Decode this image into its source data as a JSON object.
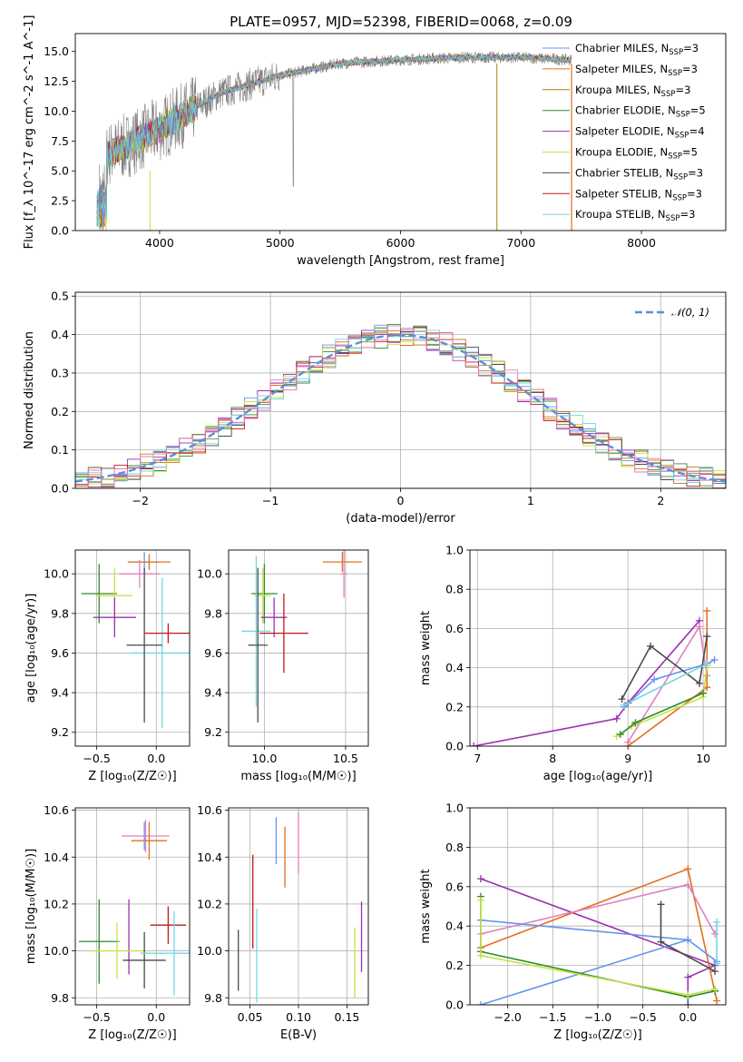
{
  "title": "PLATE=0957, MJD=52398, FIBERID=0068, z=0.09",
  "colors": {
    "chabrier_miles": "#6495ed",
    "salpeter_miles": "#e07020",
    "kroupa_miles": "#b07a1a",
    "chabrier_elodie": "#2e8b2e",
    "salpeter_elodie": "#9b30b0",
    "kroupa_elodie": "#c8e048",
    "chabrier_stelib": "#4a4a4a",
    "salpeter_stelib": "#c01818",
    "kroupa_stelib": "#70d8e0",
    "data": "#808080",
    "pink": "#e080c0"
  },
  "legend": [
    {
      "name": "Chabrier MILES",
      "nssp": "3"
    },
    {
      "name": "Salpeter MILES",
      "nssp": "3"
    },
    {
      "name": "Kroupa MILES",
      "nssp": "3"
    },
    {
      "name": "Chabrier ELODIE",
      "nssp": "5"
    },
    {
      "name": "Salpeter ELODIE",
      "nssp": "4"
    },
    {
      "name": "Kroupa ELODIE",
      "nssp": "5"
    },
    {
      "name": "Chabrier STELIB",
      "nssp": "3"
    },
    {
      "name": "Salpeter STELIB",
      "nssp": "3"
    },
    {
      "name": "Kroupa STELIB",
      "nssp": "3"
    }
  ],
  "chart_data": [
    {
      "id": "spectrum",
      "type": "line",
      "xlabel": "wavelength [Angstrom, rest frame]",
      "ylabel": "Flux [f_λ 10^-17 erg cm^-2 s^-1 A^-1]",
      "xlim": [
        3300,
        8700
      ],
      "ylim": [
        0,
        16.5
      ],
      "xticks": [
        4000,
        5000,
        6000,
        7000,
        8000
      ],
      "yticks": [
        0,
        2.5,
        5,
        7.5,
        10,
        12.5,
        15
      ],
      "series": [
        {
          "values_envelope": [
            [
              3500,
              6.0
            ],
            [
              3700,
              7.0
            ],
            [
              4000,
              8.5
            ],
            [
              4500,
              11.5
            ],
            [
              5000,
              13.0
            ],
            [
              5500,
              14.0
            ],
            [
              6000,
              14.3
            ],
            [
              6500,
              14.5
            ],
            [
              7000,
              14.5
            ],
            [
              7400,
              14.3
            ]
          ]
        }
      ]
    },
    {
      "id": "residuals",
      "type": "line",
      "xlabel": "(data-model)/error",
      "ylabel": "Normed distribution",
      "xlim": [
        -2.5,
        2.5
      ],
      "ylim": [
        0,
        0.51
      ],
      "xticks": [
        -2,
        -1,
        0,
        1,
        2
      ],
      "yticks": [
        0,
        0.1,
        0.2,
        0.3,
        0.4,
        0.5
      ],
      "legend": "N(0,1)",
      "legend_position": "top-right",
      "series": [
        {
          "name": "N(0,1)",
          "mu": 0,
          "sigma": 1
        }
      ]
    },
    {
      "id": "age_vs_Z",
      "type": "scatter",
      "xlabel": "Z [log10(Z/Z☉)]",
      "ylabel": "age  [log10(age/yr)]",
      "xlim": [
        -0.68,
        0.28
      ],
      "ylim": [
        9.13,
        10.12
      ],
      "xticks": [
        -0.5,
        0.0
      ],
      "yticks": [
        9.2,
        9.4,
        9.6,
        9.8,
        10.0
      ],
      "points": [
        {
          "c": "chabrier_miles",
          "x": -0.1,
          "xerr": 0.12,
          "y": 10.06,
          "yerr": 0.05
        },
        {
          "c": "salpeter_miles",
          "x": -0.06,
          "xerr": 0.18,
          "y": 10.06,
          "yerr": 0.04
        },
        {
          "c": "pink",
          "x": -0.14,
          "xerr": 0.17,
          "y": 10.0,
          "yerr": 0.07
        },
        {
          "c": "chabrier_elodie",
          "x": -0.48,
          "xerr": 0.15,
          "y": 9.9,
          "yerr": 0.15
        },
        {
          "c": "kroupa_elodie",
          "x": -0.35,
          "xerr": 0.15,
          "y": 9.89,
          "yerr": 0.14
        },
        {
          "c": "salpeter_elodie",
          "x": -0.35,
          "xerr": 0.18,
          "y": 9.78,
          "yerr": 0.1
        },
        {
          "c": "kroupa_stelib",
          "x": 0.05,
          "xerr": 0.27,
          "y": 9.6,
          "yerr": 0.38
        },
        {
          "c": "chabrier_stelib",
          "x": -0.1,
          "xerr": 0.15,
          "y": 9.64,
          "yerr": 0.39
        },
        {
          "c": "salpeter_stelib",
          "x": 0.1,
          "xerr": 0.2,
          "y": 9.7,
          "yerr": 0.05
        }
      ]
    },
    {
      "id": "age_vs_mass",
      "type": "scatter",
      "xlabel": "mass [log10(M/M☉)]",
      "ylabel": "",
      "xlim": [
        9.78,
        10.64
      ],
      "ylim": [
        9.13,
        10.12
      ],
      "xticks": [
        10.0,
        10.5
      ],
      "yticks": [
        9.2,
        9.4,
        9.6,
        9.8,
        10.0
      ],
      "points": [
        {
          "c": "salpeter_miles",
          "x": 10.48,
          "xerr": 0.12,
          "y": 10.06,
          "yerr": 0.05
        },
        {
          "c": "pink",
          "x": 10.49,
          "xerr": 0.02,
          "y": 10.0,
          "yerr": 0.12
        },
        {
          "c": "chabrier_elodie",
          "x": 10.0,
          "xerr": 0.08,
          "y": 9.9,
          "yerr": 0.15
        },
        {
          "c": "kroupa_elodie",
          "x": 9.99,
          "xerr": 0.05,
          "y": 9.89,
          "yerr": 0.14
        },
        {
          "c": "salpeter_elodie",
          "x": 10.06,
          "xerr": 0.08,
          "y": 9.78,
          "yerr": 0.1
        },
        {
          "c": "kroupa_stelib",
          "x": 9.95,
          "xerr": 0.09,
          "y": 9.71,
          "yerr": 0.38
        },
        {
          "c": "chabrier_stelib",
          "x": 9.96,
          "xerr": 0.06,
          "y": 9.64,
          "yerr": 0.39
        },
        {
          "c": "salpeter_stelib",
          "x": 10.12,
          "xerr": 0.15,
          "y": 9.7,
          "yerr": 0.2
        }
      ]
    },
    {
      "id": "weight_vs_age",
      "type": "line",
      "xlabel": "age  [log10(age/yr)]",
      "ylabel": "mass weight",
      "xlim": [
        6.9,
        10.3
      ],
      "ylim": [
        0,
        1.0
      ],
      "xticks": [
        7,
        8,
        9,
        10
      ],
      "yticks": [
        0.0,
        0.2,
        0.4,
        0.6,
        0.8,
        1.0
      ],
      "series": [
        {
          "c": "salpeter_elodie",
          "x": [
            6.95,
            8.85,
            9.0,
            9.95
          ],
          "y": [
            0.0,
            0.14,
            0.22,
            0.64
          ]
        },
        {
          "c": "pink",
          "x": [
            9.0,
            9.95,
            10.05
          ],
          "y": [
            0.02,
            0.61,
            0.36
          ]
        },
        {
          "c": "salpeter_miles",
          "x": [
            9.0,
            10.05,
            10.05
          ],
          "y": [
            0.0,
            0.3,
            0.69
          ]
        },
        {
          "c": "chabrier_miles",
          "x": [
            8.95,
            9.35,
            10.05,
            10.15
          ],
          "y": [
            0.2,
            0.34,
            0.42,
            0.44
          ]
        },
        {
          "c": "chabrier_stelib",
          "x": [
            8.92,
            9.3,
            9.95,
            10.05
          ],
          "y": [
            0.24,
            0.51,
            0.32,
            0.56
          ]
        },
        {
          "c": "kroupa_elodie",
          "x": [
            8.85,
            9.05,
            10.0,
            10.05
          ],
          "y": [
            0.05,
            0.1,
            0.25,
            0.41
          ]
        },
        {
          "c": "chabrier_elodie",
          "x": [
            8.9,
            9.1,
            10.0
          ],
          "y": [
            0.06,
            0.12,
            0.27
          ]
        },
        {
          "c": "kroupa_stelib",
          "x": [
            8.95,
            10.05
          ],
          "y": [
            0.21,
            0.42
          ]
        }
      ]
    },
    {
      "id": "mass_vs_Z",
      "type": "scatter",
      "xlabel": "Z [log10(Z/Z☉)]",
      "ylabel": "mass [log10(M/M☉)]",
      "xlim": [
        -0.68,
        0.28
      ],
      "ylim": [
        9.77,
        10.61
      ],
      "xticks": [
        -0.5,
        0.0
      ],
      "yticks": [
        9.8,
        10.0,
        10.2,
        10.4,
        10.6
      ],
      "points": [
        {
          "c": "pink",
          "x": -0.09,
          "xerr": 0.2,
          "y": 10.49,
          "yerr": 0.07
        },
        {
          "c": "salpeter_miles",
          "x": -0.06,
          "xerr": 0.15,
          "y": 10.47,
          "yerr": 0.08
        },
        {
          "c": "chabrier_miles",
          "x": -0.1,
          "xerr": 0.0,
          "y": 10.49,
          "yerr": 0.06
        },
        {
          "c": "salpeter_stelib",
          "x": 0.1,
          "xerr": 0.15,
          "y": 10.11,
          "yerr": 0.08
        },
        {
          "c": "salpeter_elodie",
          "x": -0.23,
          "xerr": 0.0,
          "y": 10.06,
          "yerr": 0.16
        },
        {
          "c": "chabrier_elodie",
          "x": -0.48,
          "xerr": 0.17,
          "y": 10.04,
          "yerr": 0.18
        },
        {
          "c": "kroupa_elodie",
          "x": -0.33,
          "xerr": 0.25,
          "y": 10.0,
          "yerr": 0.12
        },
        {
          "c": "chabrier_stelib",
          "x": -0.1,
          "xerr": 0.18,
          "y": 9.96,
          "yerr": 0.12
        },
        {
          "c": "kroupa_stelib",
          "x": 0.15,
          "xerr": 0.28,
          "y": 9.99,
          "yerr": 0.18
        }
      ]
    },
    {
      "id": "mass_vs_EBV",
      "type": "scatter",
      "xlabel": "E(B-V)",
      "ylabel": "",
      "xlim": [
        0.028,
        0.172
      ],
      "ylim": [
        9.77,
        10.61
      ],
      "xticks": [
        0.05,
        0.1,
        0.15
      ],
      "yticks": [
        9.8,
        10.0,
        10.2,
        10.4,
        10.6
      ],
      "points": [
        {
          "c": "chabrier_miles",
          "x": 0.077,
          "y": 10.47,
          "yerr": 0.1
        },
        {
          "c": "salpeter_miles",
          "x": 0.086,
          "y": 10.4,
          "yerr": 0.13
        },
        {
          "c": "pink",
          "x": 0.1,
          "y": 10.46,
          "yerr": 0.13
        },
        {
          "c": "salpeter_stelib",
          "x": 0.053,
          "y": 10.21,
          "yerr": 0.2
        },
        {
          "c": "chabrier_stelib",
          "x": 0.038,
          "y": 9.96,
          "yerr": 0.13
        },
        {
          "c": "kroupa_stelib",
          "x": 0.057,
          "y": 9.98,
          "yerr": 0.2
        },
        {
          "c": "salpeter_elodie",
          "x": 0.165,
          "y": 10.06,
          "yerr": 0.15
        },
        {
          "c": "kroupa_elodie",
          "x": 0.158,
          "y": 9.95,
          "yerr": 0.15
        }
      ]
    },
    {
      "id": "weight_vs_Z",
      "type": "line",
      "xlabel": "Z [log10(Z/Z☉)]",
      "ylabel": "mass weight",
      "xlim": [
        -2.42,
        0.42
      ],
      "ylim": [
        0,
        1.0
      ],
      "xticks": [
        -2.0,
        -1.5,
        -1.0,
        -0.5,
        0.0
      ],
      "yticks": [
        0.0,
        0.2,
        0.4,
        0.6,
        0.8,
        1.0
      ],
      "series": [
        {
          "c": "salpeter_elodie",
          "x": [
            -2.3,
            0.3,
            0.0,
            0.0
          ],
          "y": [
            0.64,
            0.2,
            0.14,
            0.0
          ]
        },
        {
          "c": "salpeter_miles",
          "x": [
            -2.3,
            0.0,
            0.32
          ],
          "y": [
            0.29,
            0.69,
            0.02
          ]
        },
        {
          "c": "pink",
          "x": [
            -2.3,
            0.0,
            0.3
          ],
          "y": [
            0.36,
            0.61,
            0.36
          ]
        },
        {
          "c": "chabrier_miles",
          "x": [
            -2.3,
            0.0,
            0.32
          ],
          "y": [
            -0.0,
            0.33,
            0.22
          ]
        },
        {
          "c": "chabrier_miles",
          "x": [
            -2.3,
            0.0
          ],
          "y": [
            0.43,
            0.33
          ]
        },
        {
          "c": "chabrier_stelib",
          "x": [
            -0.3,
            -0.3,
            0.3
          ],
          "y": [
            0.51,
            0.32,
            0.17
          ]
        },
        {
          "c": "chabrier_elodie",
          "x": [
            -2.3,
            -2.3,
            0.0,
            0.3
          ],
          "y": [
            0.55,
            0.27,
            0.04,
            0.07
          ]
        },
        {
          "c": "kroupa_elodie",
          "x": [
            -2.3,
            -2.3,
            0.0,
            0.3
          ],
          "y": [
            0.53,
            0.25,
            0.05,
            0.08
          ]
        },
        {
          "c": "kroupa_stelib",
          "x": [
            0.32,
            0.32
          ],
          "y": [
            0.42,
            0.21
          ]
        }
      ]
    }
  ]
}
